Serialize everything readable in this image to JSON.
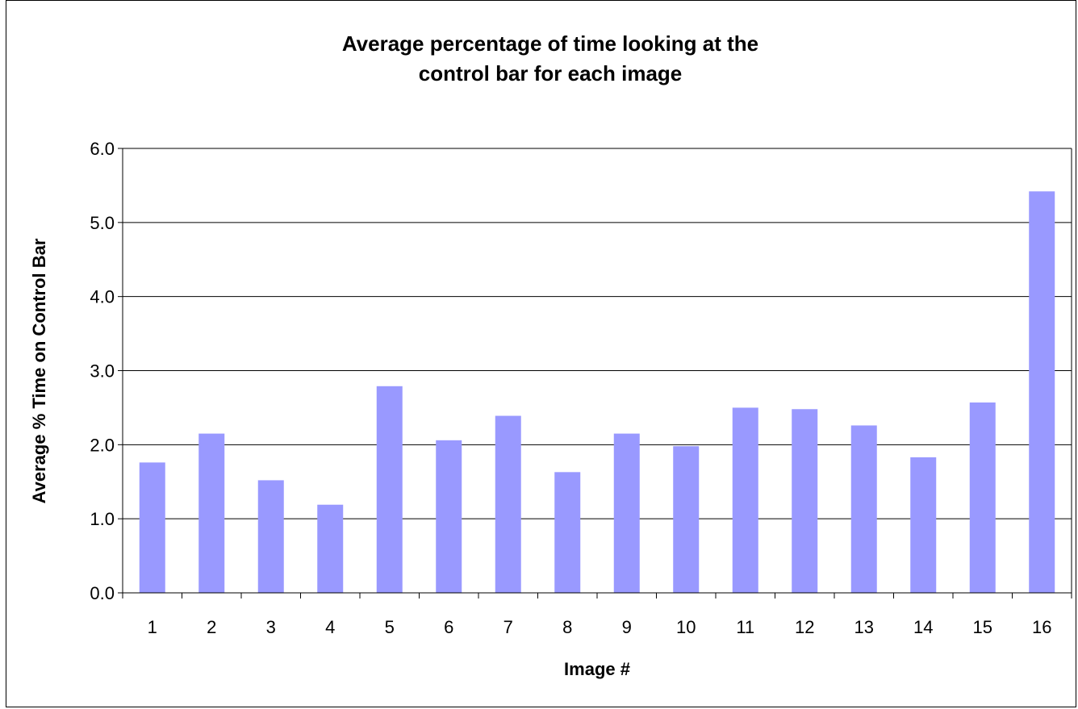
{
  "chart_data": {
    "type": "bar",
    "title_lines": [
      "Average percentage of time looking at the",
      "control bar for each image"
    ],
    "xlabel": "Image #",
    "ylabel": "Average % Time on Control Bar",
    "categories": [
      "1",
      "2",
      "3",
      "4",
      "5",
      "6",
      "7",
      "8",
      "9",
      "10",
      "11",
      "12",
      "13",
      "14",
      "15",
      "16"
    ],
    "values": [
      1.76,
      2.15,
      1.52,
      1.19,
      2.79,
      2.06,
      2.39,
      1.63,
      2.15,
      1.98,
      2.5,
      2.48,
      2.26,
      1.83,
      2.57,
      5.42
    ],
    "ylim": [
      0,
      6
    ],
    "yticks": [
      "0.0",
      "1.0",
      "2.0",
      "3.0",
      "4.0",
      "5.0",
      "6.0"
    ],
    "ytick_values": [
      0,
      1,
      2,
      3,
      4,
      5,
      6
    ],
    "grid": true,
    "legend": "none",
    "bar_color": "#9999FF",
    "grid_color": "#000000",
    "background_color": "#FFFFFF"
  }
}
